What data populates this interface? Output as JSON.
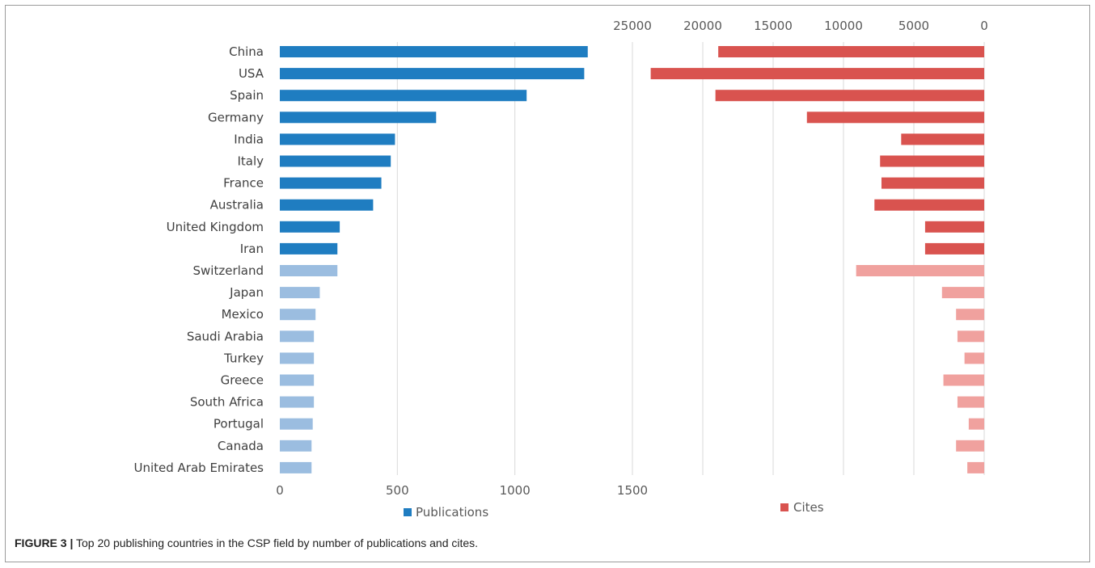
{
  "caption": {
    "label": "FIGURE 3 |",
    "text": "Top 20 publishing countries in the CSP field by number of publications and cites."
  },
  "chart_data": [
    {
      "type": "bar",
      "orientation": "horizontal",
      "categories": [
        "China",
        "USA",
        "Spain",
        "Germany",
        "India",
        "Italy",
        "France",
        "Australia",
        "United Kingdom",
        "Iran",
        "Switzerland",
        "Japan",
        "Mexico",
        "Saudi Arabia",
        "Turkey",
        "Greece",
        "South Africa",
        "Portugal",
        "Canada",
        "United Arab Emirates"
      ],
      "series": [
        {
          "name": "Publications",
          "color": "#1f7dc1",
          "light_color": "#9bbde0",
          "values": [
            1310,
            1295,
            1050,
            665,
            490,
            472,
            432,
            397,
            255,
            245,
            245,
            170,
            152,
            145,
            145,
            145,
            145,
            140,
            135,
            135
          ]
        }
      ],
      "highlight_top_n": 10,
      "xticks": [
        0,
        500,
        1000,
        1500
      ],
      "xlim": [
        0,
        1500
      ],
      "grid": true,
      "legend": "bottom"
    },
    {
      "type": "bar",
      "orientation": "horizontal",
      "reversed_axis": true,
      "categories": [
        "China",
        "USA",
        "Spain",
        "Germany",
        "India",
        "Italy",
        "France",
        "Australia",
        "United Kingdom",
        "Iran",
        "Switzerland",
        "Japan",
        "Mexico",
        "Saudi Arabia",
        "Turkey",
        "Greece",
        "South Africa",
        "Portugal",
        "Canada",
        "United Arab Emirates"
      ],
      "series": [
        {
          "name": "Cites",
          "color": "#d9534f",
          "light_color": "#f0a19e",
          "values": [
            18900,
            23700,
            19100,
            12600,
            5900,
            7400,
            7300,
            7800,
            4200,
            4200,
            9100,
            3000,
            2000,
            1900,
            1400,
            2900,
            1900,
            1100,
            2000,
            1200
          ]
        }
      ],
      "highlight_top_n": 10,
      "xticks": [
        25000,
        20000,
        15000,
        10000,
        5000,
        0
      ],
      "xlim": [
        0,
        25000
      ],
      "grid": true,
      "legend": "bottom"
    }
  ]
}
